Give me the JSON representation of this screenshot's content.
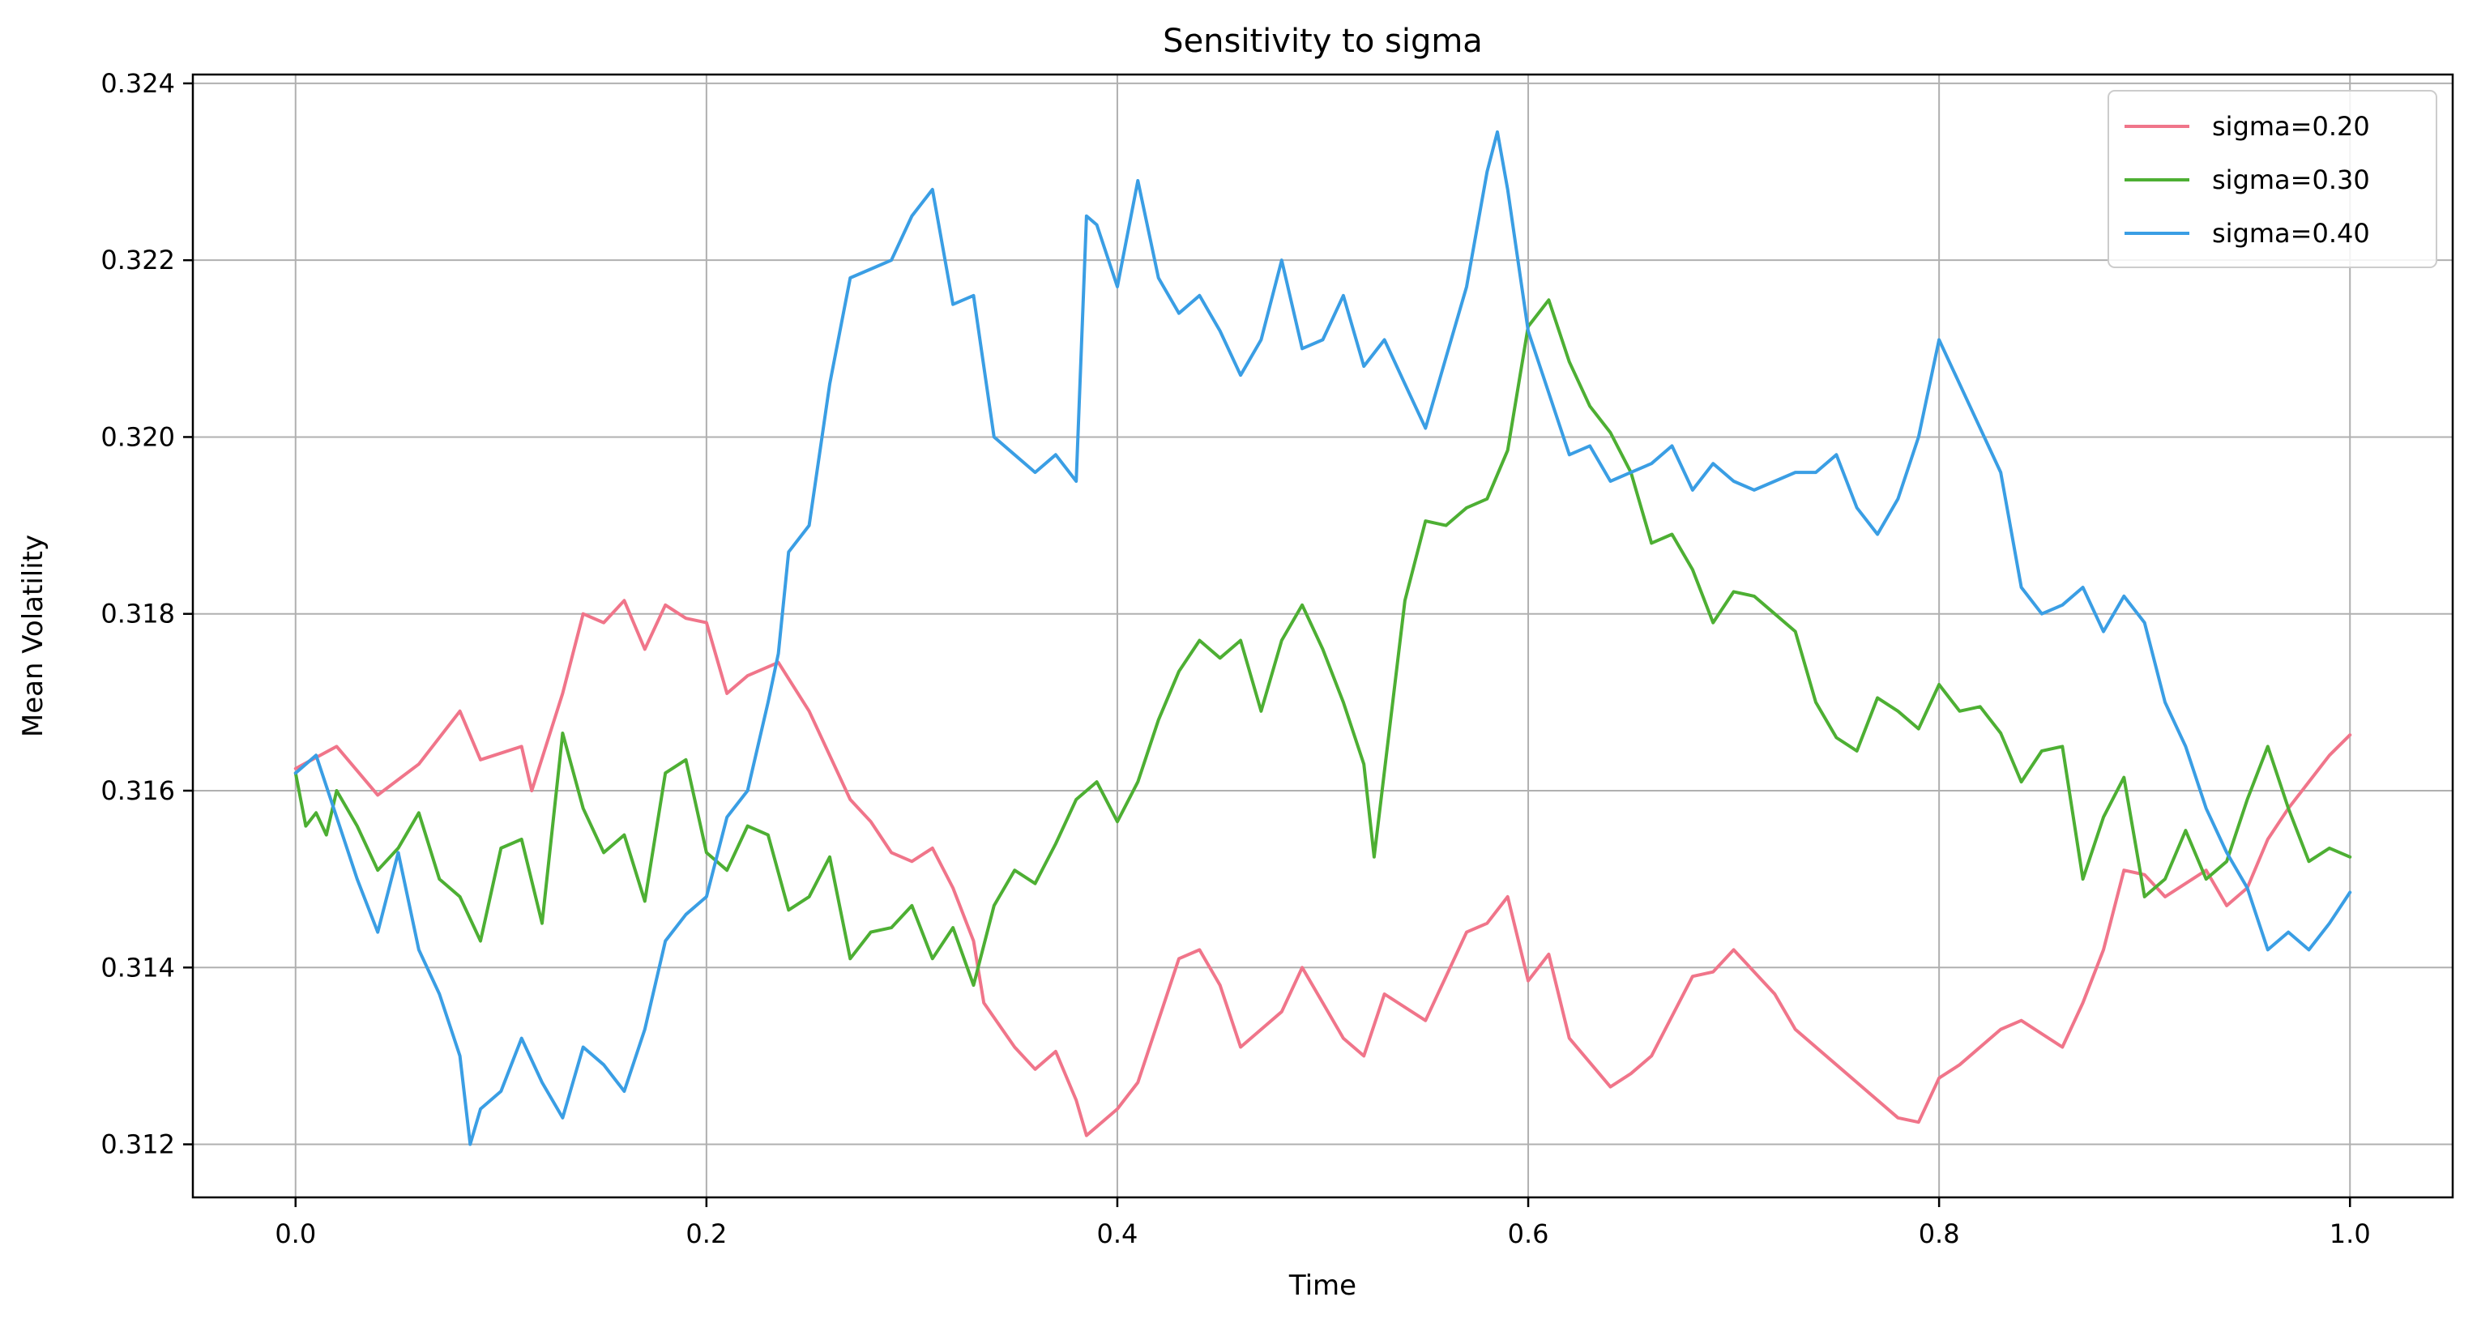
{
  "chart_data": {
    "type": "line",
    "title": "Sensitivity to sigma",
    "xlabel": "Time",
    "ylabel": "Mean Volatility",
    "xlim": [
      -0.05,
      1.05
    ],
    "ylim": [
      0.3114,
      0.3241
    ],
    "xticks": [
      0.0,
      0.2,
      0.4,
      0.6,
      0.8,
      1.0
    ],
    "xtick_labels": [
      "0.0",
      "0.2",
      "0.4",
      "0.6",
      "0.8",
      "1.0"
    ],
    "yticks": [
      0.312,
      0.314,
      0.316,
      0.318,
      0.32,
      0.322,
      0.324
    ],
    "ytick_labels": [
      "0.312",
      "0.314",
      "0.316",
      "0.318",
      "0.320",
      "0.322",
      "0.324"
    ],
    "grid": true,
    "legend_position": "top-right",
    "series": [
      {
        "name": "sigma=0.20",
        "color": "#f0758a",
        "points": [
          [
            0.0,
            0.31625
          ],
          [
            0.02,
            0.3165
          ],
          [
            0.04,
            0.31595
          ],
          [
            0.06,
            0.3163
          ],
          [
            0.08,
            0.3169
          ],
          [
            0.09,
            0.31635
          ],
          [
            0.11,
            0.3165
          ],
          [
            0.115,
            0.316
          ],
          [
            0.13,
            0.3171
          ],
          [
            0.14,
            0.318
          ],
          [
            0.15,
            0.3179
          ],
          [
            0.16,
            0.31815
          ],
          [
            0.17,
            0.3176
          ],
          [
            0.18,
            0.3181
          ],
          [
            0.19,
            0.31795
          ],
          [
            0.2,
            0.3179
          ],
          [
            0.21,
            0.3171
          ],
          [
            0.22,
            0.3173
          ],
          [
            0.235,
            0.31745
          ],
          [
            0.25,
            0.3169
          ],
          [
            0.27,
            0.3159
          ],
          [
            0.28,
            0.31565
          ],
          [
            0.29,
            0.3153
          ],
          [
            0.3,
            0.3152
          ],
          [
            0.31,
            0.31535
          ],
          [
            0.32,
            0.3149
          ],
          [
            0.33,
            0.3143
          ],
          [
            0.335,
            0.3136
          ],
          [
            0.35,
            0.3131
          ],
          [
            0.36,
            0.31285
          ],
          [
            0.37,
            0.31305
          ],
          [
            0.38,
            0.3125
          ],
          [
            0.385,
            0.3121
          ],
          [
            0.4,
            0.3124
          ],
          [
            0.41,
            0.3127
          ],
          [
            0.43,
            0.3141
          ],
          [
            0.44,
            0.3142
          ],
          [
            0.45,
            0.3138
          ],
          [
            0.46,
            0.3131
          ],
          [
            0.48,
            0.3135
          ],
          [
            0.49,
            0.314
          ],
          [
            0.5,
            0.3136
          ],
          [
            0.51,
            0.3132
          ],
          [
            0.52,
            0.313
          ],
          [
            0.53,
            0.3137
          ],
          [
            0.55,
            0.3134
          ],
          [
            0.57,
            0.3144
          ],
          [
            0.58,
            0.3145
          ],
          [
            0.59,
            0.3148
          ],
          [
            0.6,
            0.31385
          ],
          [
            0.61,
            0.31415
          ],
          [
            0.62,
            0.3132
          ],
          [
            0.64,
            0.31265
          ],
          [
            0.65,
            0.3128
          ],
          [
            0.66,
            0.313
          ],
          [
            0.68,
            0.3139
          ],
          [
            0.69,
            0.31395
          ],
          [
            0.7,
            0.3142
          ],
          [
            0.72,
            0.3137
          ],
          [
            0.73,
            0.3133
          ],
          [
            0.75,
            0.3129
          ],
          [
            0.76,
            0.3127
          ],
          [
            0.78,
            0.3123
          ],
          [
            0.79,
            0.31225
          ],
          [
            0.8,
            0.31275
          ],
          [
            0.81,
            0.3129
          ],
          [
            0.83,
            0.3133
          ],
          [
            0.84,
            0.3134
          ],
          [
            0.86,
            0.3131
          ],
          [
            0.87,
            0.3136
          ],
          [
            0.88,
            0.3142
          ],
          [
            0.89,
            0.3151
          ],
          [
            0.9,
            0.31505
          ],
          [
            0.91,
            0.3148
          ],
          [
            0.93,
            0.3151
          ],
          [
            0.94,
            0.3147
          ],
          [
            0.95,
            0.3149
          ],
          [
            0.96,
            0.31545
          ],
          [
            0.97,
            0.3158
          ],
          [
            0.98,
            0.3161
          ],
          [
            0.99,
            0.3164
          ],
          [
            1.0,
            0.31663
          ]
        ]
      },
      {
        "name": "sigma=0.30",
        "color": "#4daf33",
        "points": [
          [
            0.0,
            0.3162
          ],
          [
            0.005,
            0.3156
          ],
          [
            0.01,
            0.31575
          ],
          [
            0.015,
            0.3155
          ],
          [
            0.02,
            0.316
          ],
          [
            0.03,
            0.3156
          ],
          [
            0.04,
            0.3151
          ],
          [
            0.05,
            0.31535
          ],
          [
            0.06,
            0.31575
          ],
          [
            0.07,
            0.315
          ],
          [
            0.08,
            0.3148
          ],
          [
            0.09,
            0.3143
          ],
          [
            0.1,
            0.31535
          ],
          [
            0.11,
            0.31545
          ],
          [
            0.12,
            0.3145
          ],
          [
            0.13,
            0.31665
          ],
          [
            0.14,
            0.3158
          ],
          [
            0.15,
            0.3153
          ],
          [
            0.16,
            0.3155
          ],
          [
            0.17,
            0.31475
          ],
          [
            0.18,
            0.3162
          ],
          [
            0.19,
            0.31635
          ],
          [
            0.2,
            0.3153
          ],
          [
            0.21,
            0.3151
          ],
          [
            0.22,
            0.3156
          ],
          [
            0.23,
            0.3155
          ],
          [
            0.24,
            0.31465
          ],
          [
            0.25,
            0.3148
          ],
          [
            0.26,
            0.31525
          ],
          [
            0.27,
            0.3141
          ],
          [
            0.28,
            0.3144
          ],
          [
            0.29,
            0.31445
          ],
          [
            0.3,
            0.3147
          ],
          [
            0.31,
            0.3141
          ],
          [
            0.32,
            0.31445
          ],
          [
            0.33,
            0.3138
          ],
          [
            0.34,
            0.3147
          ],
          [
            0.35,
            0.3151
          ],
          [
            0.36,
            0.31495
          ],
          [
            0.37,
            0.3154
          ],
          [
            0.38,
            0.3159
          ],
          [
            0.39,
            0.3161
          ],
          [
            0.4,
            0.31565
          ],
          [
            0.41,
            0.3161
          ],
          [
            0.42,
            0.3168
          ],
          [
            0.43,
            0.31735
          ],
          [
            0.44,
            0.3177
          ],
          [
            0.45,
            0.3175
          ],
          [
            0.46,
            0.3177
          ],
          [
            0.47,
            0.3169
          ],
          [
            0.48,
            0.3177
          ],
          [
            0.49,
            0.3181
          ],
          [
            0.5,
            0.3176
          ],
          [
            0.51,
            0.317
          ],
          [
            0.52,
            0.3163
          ],
          [
            0.525,
            0.31525
          ],
          [
            0.54,
            0.31815
          ],
          [
            0.55,
            0.31905
          ],
          [
            0.56,
            0.319
          ],
          [
            0.57,
            0.3192
          ],
          [
            0.58,
            0.3193
          ],
          [
            0.59,
            0.31985
          ],
          [
            0.6,
            0.32125
          ],
          [
            0.61,
            0.32155
          ],
          [
            0.62,
            0.32085
          ],
          [
            0.63,
            0.32035
          ],
          [
            0.64,
            0.32005
          ],
          [
            0.65,
            0.3196
          ],
          [
            0.66,
            0.3188
          ],
          [
            0.67,
            0.3189
          ],
          [
            0.68,
            0.3185
          ],
          [
            0.69,
            0.3179
          ],
          [
            0.7,
            0.31825
          ],
          [
            0.71,
            0.3182
          ],
          [
            0.72,
            0.318
          ],
          [
            0.73,
            0.3178
          ],
          [
            0.74,
            0.317
          ],
          [
            0.75,
            0.3166
          ],
          [
            0.76,
            0.31645
          ],
          [
            0.77,
            0.31705
          ],
          [
            0.78,
            0.3169
          ],
          [
            0.79,
            0.3167
          ],
          [
            0.8,
            0.3172
          ],
          [
            0.81,
            0.3169
          ],
          [
            0.82,
            0.31695
          ],
          [
            0.83,
            0.31665
          ],
          [
            0.84,
            0.3161
          ],
          [
            0.85,
            0.31645
          ],
          [
            0.86,
            0.3165
          ],
          [
            0.87,
            0.315
          ],
          [
            0.88,
            0.3157
          ],
          [
            0.89,
            0.31615
          ],
          [
            0.9,
            0.3148
          ],
          [
            0.91,
            0.315
          ],
          [
            0.92,
            0.31555
          ],
          [
            0.93,
            0.315
          ],
          [
            0.94,
            0.3152
          ],
          [
            0.95,
            0.3159
          ],
          [
            0.96,
            0.3165
          ],
          [
            0.97,
            0.3158
          ],
          [
            0.98,
            0.3152
          ],
          [
            0.99,
            0.31535
          ],
          [
            1.0,
            0.31525
          ]
        ]
      },
      {
        "name": "sigma=0.40",
        "color": "#3a9ee4",
        "points": [
          [
            0.0,
            0.3162
          ],
          [
            0.01,
            0.3164
          ],
          [
            0.02,
            0.3157
          ],
          [
            0.03,
            0.315
          ],
          [
            0.04,
            0.3144
          ],
          [
            0.05,
            0.3153
          ],
          [
            0.06,
            0.3142
          ],
          [
            0.07,
            0.3137
          ],
          [
            0.08,
            0.313
          ],
          [
            0.085,
            0.312
          ],
          [
            0.09,
            0.3124
          ],
          [
            0.1,
            0.3126
          ],
          [
            0.11,
            0.3132
          ],
          [
            0.12,
            0.3127
          ],
          [
            0.13,
            0.3123
          ],
          [
            0.14,
            0.3131
          ],
          [
            0.15,
            0.3129
          ],
          [
            0.16,
            0.3126
          ],
          [
            0.17,
            0.3133
          ],
          [
            0.18,
            0.3143
          ],
          [
            0.19,
            0.3146
          ],
          [
            0.2,
            0.3148
          ],
          [
            0.21,
            0.3157
          ],
          [
            0.22,
            0.316
          ],
          [
            0.23,
            0.317
          ],
          [
            0.235,
            0.31755
          ],
          [
            0.24,
            0.3187
          ],
          [
            0.25,
            0.319
          ],
          [
            0.26,
            0.3206
          ],
          [
            0.27,
            0.3218
          ],
          [
            0.28,
            0.3219
          ],
          [
            0.29,
            0.322
          ],
          [
            0.3,
            0.3225
          ],
          [
            0.31,
            0.3228
          ],
          [
            0.32,
            0.3215
          ],
          [
            0.33,
            0.3216
          ],
          [
            0.34,
            0.32
          ],
          [
            0.35,
            0.3198
          ],
          [
            0.36,
            0.3196
          ],
          [
            0.37,
            0.3198
          ],
          [
            0.38,
            0.3195
          ],
          [
            0.385,
            0.3225
          ],
          [
            0.39,
            0.3224
          ],
          [
            0.4,
            0.3217
          ],
          [
            0.41,
            0.3229
          ],
          [
            0.42,
            0.3218
          ],
          [
            0.43,
            0.3214
          ],
          [
            0.44,
            0.3216
          ],
          [
            0.45,
            0.3212
          ],
          [
            0.46,
            0.3207
          ],
          [
            0.47,
            0.3211
          ],
          [
            0.48,
            0.322
          ],
          [
            0.49,
            0.321
          ],
          [
            0.5,
            0.3211
          ],
          [
            0.51,
            0.3216
          ],
          [
            0.52,
            0.3208
          ],
          [
            0.53,
            0.3211
          ],
          [
            0.54,
            0.3206
          ],
          [
            0.55,
            0.3201
          ],
          [
            0.56,
            0.3209
          ],
          [
            0.57,
            0.3217
          ],
          [
            0.58,
            0.323
          ],
          [
            0.585,
            0.32345
          ],
          [
            0.59,
            0.3228
          ],
          [
            0.6,
            0.3212
          ],
          [
            0.61,
            0.3205
          ],
          [
            0.62,
            0.3198
          ],
          [
            0.63,
            0.3199
          ],
          [
            0.64,
            0.3195
          ],
          [
            0.65,
            0.3196
          ],
          [
            0.66,
            0.3197
          ],
          [
            0.67,
            0.3199
          ],
          [
            0.68,
            0.3194
          ],
          [
            0.69,
            0.3197
          ],
          [
            0.7,
            0.3195
          ],
          [
            0.71,
            0.3194
          ],
          [
            0.72,
            0.3195
          ],
          [
            0.73,
            0.3196
          ],
          [
            0.74,
            0.3196
          ],
          [
            0.75,
            0.3198
          ],
          [
            0.76,
            0.3192
          ],
          [
            0.77,
            0.3189
          ],
          [
            0.78,
            0.3193
          ],
          [
            0.79,
            0.32
          ],
          [
            0.8,
            0.3211
          ],
          [
            0.81,
            0.3206
          ],
          [
            0.82,
            0.3201
          ],
          [
            0.83,
            0.3196
          ],
          [
            0.84,
            0.3183
          ],
          [
            0.85,
            0.318
          ],
          [
            0.86,
            0.3181
          ],
          [
            0.87,
            0.3183
          ],
          [
            0.88,
            0.3178
          ],
          [
            0.89,
            0.3182
          ],
          [
            0.9,
            0.3179
          ],
          [
            0.91,
            0.317
          ],
          [
            0.92,
            0.3165
          ],
          [
            0.93,
            0.3158
          ],
          [
            0.94,
            0.3153
          ],
          [
            0.95,
            0.3149
          ],
          [
            0.96,
            0.3142
          ],
          [
            0.97,
            0.3144
          ],
          [
            0.98,
            0.3142
          ],
          [
            0.99,
            0.3145
          ],
          [
            1.0,
            0.31485
          ]
        ]
      }
    ]
  }
}
